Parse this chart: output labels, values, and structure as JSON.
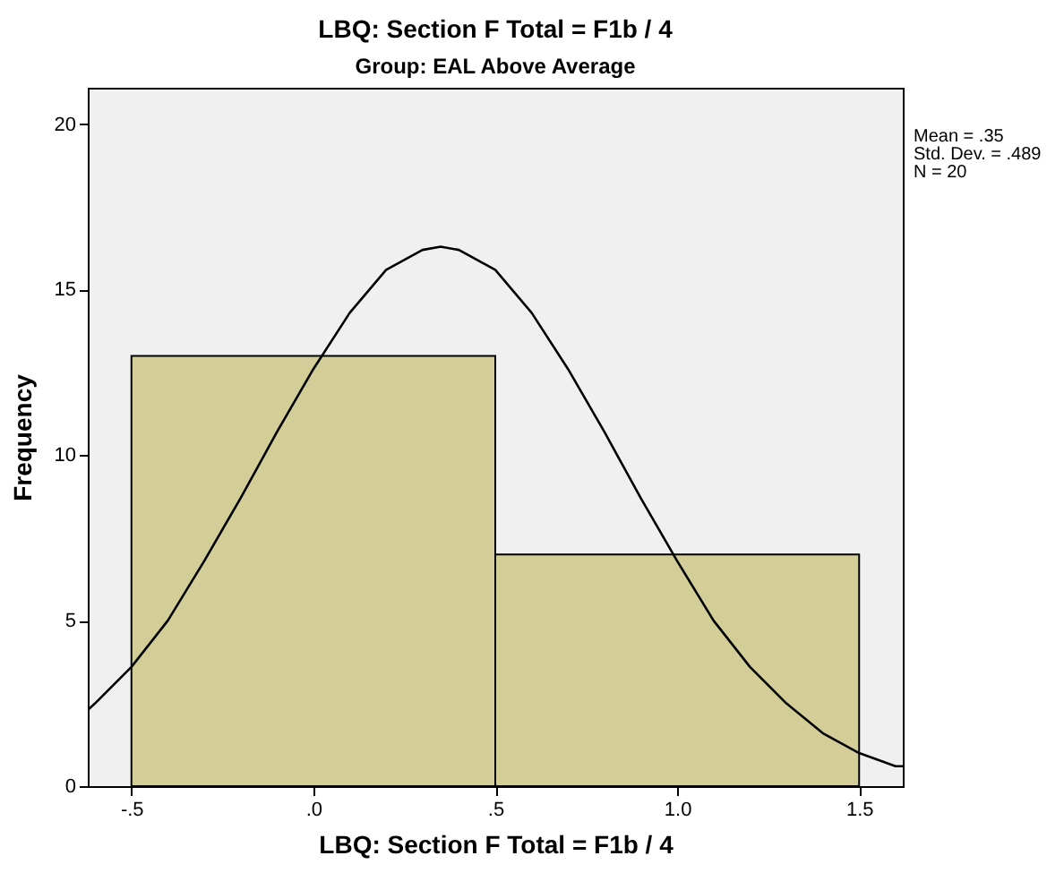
{
  "chart_data": {
    "type": "histogram",
    "title": "LBQ: Section F Total = F1b / 4",
    "subtitle": "Group: EAL Above Average",
    "xlabel": "LBQ: Section F Total = F1b / 4",
    "ylabel": "Frequency",
    "bins": [
      -0.5,
      0.5,
      1.5
    ],
    "values": [
      13,
      7
    ],
    "color": "#d3ce98",
    "series": [
      {
        "type": "line",
        "color": "#000000",
        "x": [
          -0.62,
          -0.6,
          -0.5,
          -0.4,
          -0.3,
          -0.2,
          -0.1,
          0.0,
          0.1,
          0.2,
          0.3,
          0.35,
          0.4,
          0.5,
          0.6,
          0.7,
          0.8,
          0.9,
          1.0,
          1.1,
          1.2,
          1.3,
          1.4,
          1.5,
          1.6,
          1.62
        ],
        "values": [
          2.3,
          2.5,
          3.6,
          5.0,
          6.8,
          8.7,
          10.7,
          12.6,
          14.3,
          15.6,
          16.2,
          16.3,
          16.2,
          15.6,
          14.3,
          12.6,
          10.7,
          8.7,
          6.8,
          5.0,
          3.6,
          2.5,
          1.6,
          1.0,
          0.6,
          0.6
        ]
      }
    ],
    "xlim": [
      -0.62,
      1.62
    ],
    "xticks": [
      {
        "value": -0.5,
        "label": "-.5"
      },
      {
        "value": 0,
        "label": ".0"
      },
      {
        "value": 0.5,
        "label": ".5"
      },
      {
        "value": 1,
        "label": "1.0"
      },
      {
        "value": 1.5,
        "label": "1.5"
      }
    ],
    "ylim": [
      0,
      21.1
    ],
    "yticks": [
      0,
      5,
      10,
      15,
      20
    ],
    "grid": false,
    "annotations": [
      "Mean = .35",
      "Std. Dev. = .489",
      "N = 20"
    ]
  }
}
